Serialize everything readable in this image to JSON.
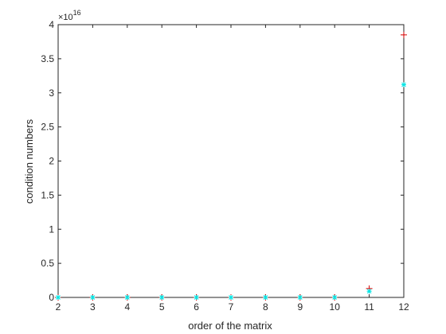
{
  "chart_data": {
    "type": "scatter",
    "title": "",
    "xlabel": "order of the matrix",
    "ylabel": "condition numbers",
    "exponent_label": "×10",
    "exponent_power": "16",
    "xlim": [
      2,
      12
    ],
    "ylim": [
      0,
      4
    ],
    "xticks": [
      2,
      3,
      4,
      5,
      6,
      7,
      8,
      9,
      10,
      11,
      12
    ],
    "yticks": [
      0,
      0.5,
      1,
      1.5,
      2,
      2.5,
      3,
      3.5,
      4
    ],
    "ytick_labels": [
      "0",
      "0.5",
      "1",
      "1.5",
      "2",
      "2.5",
      "3",
      "3.5",
      "4"
    ],
    "grid": false,
    "series": [
      {
        "marker": "plus",
        "color": "#d40000",
        "points": [
          {
            "x": 2,
            "y": 0
          },
          {
            "x": 3,
            "y": 0
          },
          {
            "x": 4,
            "y": 0
          },
          {
            "x": 5,
            "y": 0
          },
          {
            "x": 6,
            "y": 0
          },
          {
            "x": 7,
            "y": 0
          },
          {
            "x": 8,
            "y": 0
          },
          {
            "x": 9,
            "y": 0
          },
          {
            "x": 10,
            "y": 0
          },
          {
            "x": 11,
            "y": 0.13
          },
          {
            "x": 12,
            "y": 3.85
          }
        ]
      },
      {
        "marker": "star",
        "color": "#00e5e5",
        "points": [
          {
            "x": 2,
            "y": 0
          },
          {
            "x": 3,
            "y": 0
          },
          {
            "x": 4,
            "y": 0
          },
          {
            "x": 5,
            "y": 0
          },
          {
            "x": 6,
            "y": 0
          },
          {
            "x": 7,
            "y": 0
          },
          {
            "x": 8,
            "y": 0
          },
          {
            "x": 9,
            "y": 0
          },
          {
            "x": 10,
            "y": 0
          },
          {
            "x": 11,
            "y": 0.09
          },
          {
            "x": 12,
            "y": 3.12
          }
        ]
      }
    ]
  }
}
